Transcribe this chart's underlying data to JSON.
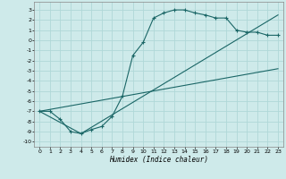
{
  "xlabel": "Humidex (Indice chaleur)",
  "xlim": [
    -0.5,
    23.5
  ],
  "ylim": [
    -10.5,
    3.8
  ],
  "xticks": [
    0,
    1,
    2,
    3,
    4,
    5,
    6,
    7,
    8,
    9,
    10,
    11,
    12,
    13,
    14,
    15,
    16,
    17,
    18,
    19,
    20,
    21,
    22,
    23
  ],
  "yticks": [
    3,
    2,
    1,
    0,
    -1,
    -2,
    -3,
    -4,
    -5,
    -6,
    -7,
    -8,
    -9,
    -10
  ],
  "bg_color": "#ceeaea",
  "line_color": "#1a6666",
  "grid_color": "#b0d8d8",
  "curve1_x": [
    0,
    1,
    2,
    3,
    4,
    5,
    6,
    7,
    8,
    9,
    10,
    11,
    12,
    13,
    14,
    15,
    16,
    17,
    18,
    19,
    20,
    21,
    22,
    23
  ],
  "curve1_y": [
    -7.0,
    -7.0,
    -7.8,
    -9.0,
    -9.2,
    -8.8,
    -8.5,
    -7.5,
    -5.5,
    -1.5,
    -0.2,
    2.2,
    2.7,
    3.0,
    3.0,
    2.7,
    2.5,
    2.2,
    2.2,
    1.0,
    0.8,
    0.8,
    0.5,
    0.5
  ],
  "curve2_x": [
    0,
    23
  ],
  "curve2_y": [
    -7.0,
    -2.8
  ],
  "curve3_x": [
    0,
    4,
    23
  ],
  "curve3_y": [
    -7.0,
    -9.2,
    2.5
  ]
}
